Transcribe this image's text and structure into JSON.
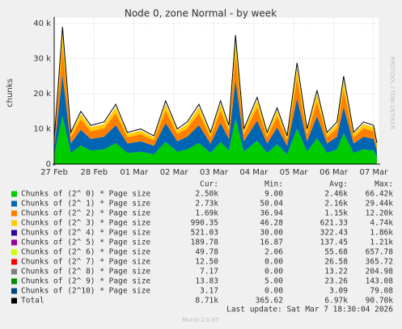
{
  "chart_data": {
    "type": "stacked-area",
    "title": "Node 0, zone Normal - by week",
    "y_label": "chunks",
    "side_label": "RRDTOOL / TOBI OETIKER",
    "x": [
      0,
      5,
      10,
      16,
      22,
      30,
      37,
      44,
      52,
      60,
      67,
      74,
      80,
      87,
      94,
      100,
      105,
      109,
      114,
      122,
      128,
      134,
      140,
      146,
      152,
      158,
      164,
      170,
      174,
      180,
      186,
      192,
      194
    ],
    "xlim": [
      0,
      194
    ],
    "xticks": [
      {
        "value": 0,
        "label": "27 Feb"
      },
      {
        "value": 24,
        "label": "28 Feb"
      },
      {
        "value": 48,
        "label": "01 Mar"
      },
      {
        "value": 72,
        "label": "02 Mar"
      },
      {
        "value": 96,
        "label": "03 Mar"
      },
      {
        "value": 120,
        "label": "04 Mar"
      },
      {
        "value": 144,
        "label": "05 Mar"
      },
      {
        "value": 168,
        "label": "06 Mar"
      },
      {
        "value": 192,
        "label": "07 Mar"
      }
    ],
    "ylim": [
      0,
      40000
    ],
    "yticks": [
      0,
      {
        "value": 10000,
        "label": "10 k"
      },
      {
        "value": 20000,
        "label": "20 k"
      },
      {
        "value": 30000,
        "label": "30 k"
      },
      {
        "value": 40000,
        "label": "40 k"
      }
    ],
    "grid": true,
    "columns": [
      "Cur:",
      "Min:",
      "Avg:",
      "Max:"
    ],
    "series": [
      {
        "name": "Chunks of (2^ 0) * Page size",
        "color": "#00cc00",
        "cur": "2.50k",
        "min": "9.00",
        "avg": "2.46k",
        "max": "66.42k",
        "values": [
          2450,
          13650,
          3150,
          5250,
          3850,
          4200,
          5950,
          3150,
          3500,
          2800,
          6300,
          3500,
          4200,
          5950,
          3150,
          6300,
          3850,
          12845,
          3500,
          6650,
          3150,
          5600,
          2800,
          10080,
          3500,
          7350,
          3150,
          4200,
          8750,
          3150,
          4200,
          3850,
          2100
        ]
      },
      {
        "name": "Chunks of (2^ 1) * Page size",
        "color": "#0066b3",
        "cur": "2.73k",
        "min": "50.04",
        "avg": "2.16k",
        "max": "29.44k",
        "values": [
          2100,
          11700,
          2700,
          4500,
          3300,
          3600,
          5100,
          2700,
          3000,
          2400,
          5400,
          3000,
          3600,
          5100,
          2700,
          5400,
          3300,
          11010,
          3000,
          5700,
          2700,
          4800,
          2400,
          8640,
          3000,
          6300,
          2700,
          3600,
          7500,
          2700,
          3600,
          3300,
          1800
        ]
      },
      {
        "name": "Chunks of (2^ 2) * Page size",
        "color": "#ff8000",
        "cur": "1.69k",
        "min": "36.94",
        "avg": "1.15k",
        "max": "12.20k",
        "values": [
          1400,
          7800,
          1800,
          3000,
          2200,
          2400,
          3400,
          1800,
          2000,
          1600,
          3600,
          2000,
          2400,
          3400,
          1800,
          3600,
          2200,
          7340,
          2000,
          3800,
          1800,
          3200,
          1600,
          5760,
          2000,
          4200,
          1800,
          2400,
          5000,
          1800,
          2400,
          2200,
          1200
        ]
      },
      {
        "name": "Chunks of (2^ 3) * Page size",
        "color": "#ffcc00",
        "cur": "990.35",
        "min": "46.28",
        "avg": "621.33",
        "max": "4.74k",
        "values": [
          700,
          3900,
          900,
          1500,
          1100,
          1200,
          1700,
          900,
          1000,
          800,
          1800,
          1000,
          1200,
          1700,
          900,
          1800,
          1100,
          3670,
          1000,
          1900,
          900,
          1600,
          800,
          2880,
          1000,
          2100,
          900,
          1200,
          2500,
          900,
          1200,
          1100,
          600
        ]
      },
      {
        "name": "Chunks of (2^ 4) * Page size",
        "color": "#330099",
        "cur": "521.03",
        "min": "30.00",
        "avg": "322.43",
        "max": "1.86k"
      },
      {
        "name": "Chunks of (2^ 5) * Page size",
        "color": "#990099",
        "cur": "189.78",
        "min": "16.87",
        "avg": "137.45",
        "max": "1.21k"
      },
      {
        "name": "Chunks of (2^ 6) * Page size",
        "color": "#ccff00",
        "cur": "49.78",
        "min": "2.06",
        "avg": "55.68",
        "max": "657.78"
      },
      {
        "name": "Chunks of (2^ 7) * Page size",
        "color": "#ff0000",
        "cur": "12.50",
        "min": "0.00",
        "avg": "26.58",
        "max": "365.72"
      },
      {
        "name": "Chunks of (2^ 8) * Page size",
        "color": "#808080",
        "cur": "7.17",
        "min": "0.00",
        "avg": "13.22",
        "max": "204.98"
      },
      {
        "name": "Chunks of (2^ 9) * Page size",
        "color": "#008f00",
        "cur": "13.83",
        "min": "5.00",
        "avg": "23.26",
        "max": "143.08"
      },
      {
        "name": "Chunks of (2^10) * Page size",
        "color": "#00487d",
        "cur": "3.17",
        "min": "0.00",
        "avg": "3.09",
        "max": "79.08"
      },
      {
        "name": "Total",
        "color": "#000000",
        "total": true,
        "cur": "8.71k",
        "min": "365.62",
        "avg": "6.97k",
        "max": "90.70k",
        "values": [
          7000,
          39000,
          9000,
          15000,
          11000,
          12000,
          17000,
          9000,
          10000,
          8000,
          18000,
          10000,
          12000,
          17000,
          9000,
          18000,
          11000,
          36700,
          10000,
          19000,
          9000,
          16000,
          8000,
          28800,
          10000,
          21000,
          9000,
          12000,
          25000,
          9000,
          12000,
          11000,
          6000
        ]
      }
    ],
    "last_update": "Last update: Sat Mar  7 18:30:04 2026",
    "version": "Munin 2.0.67"
  }
}
